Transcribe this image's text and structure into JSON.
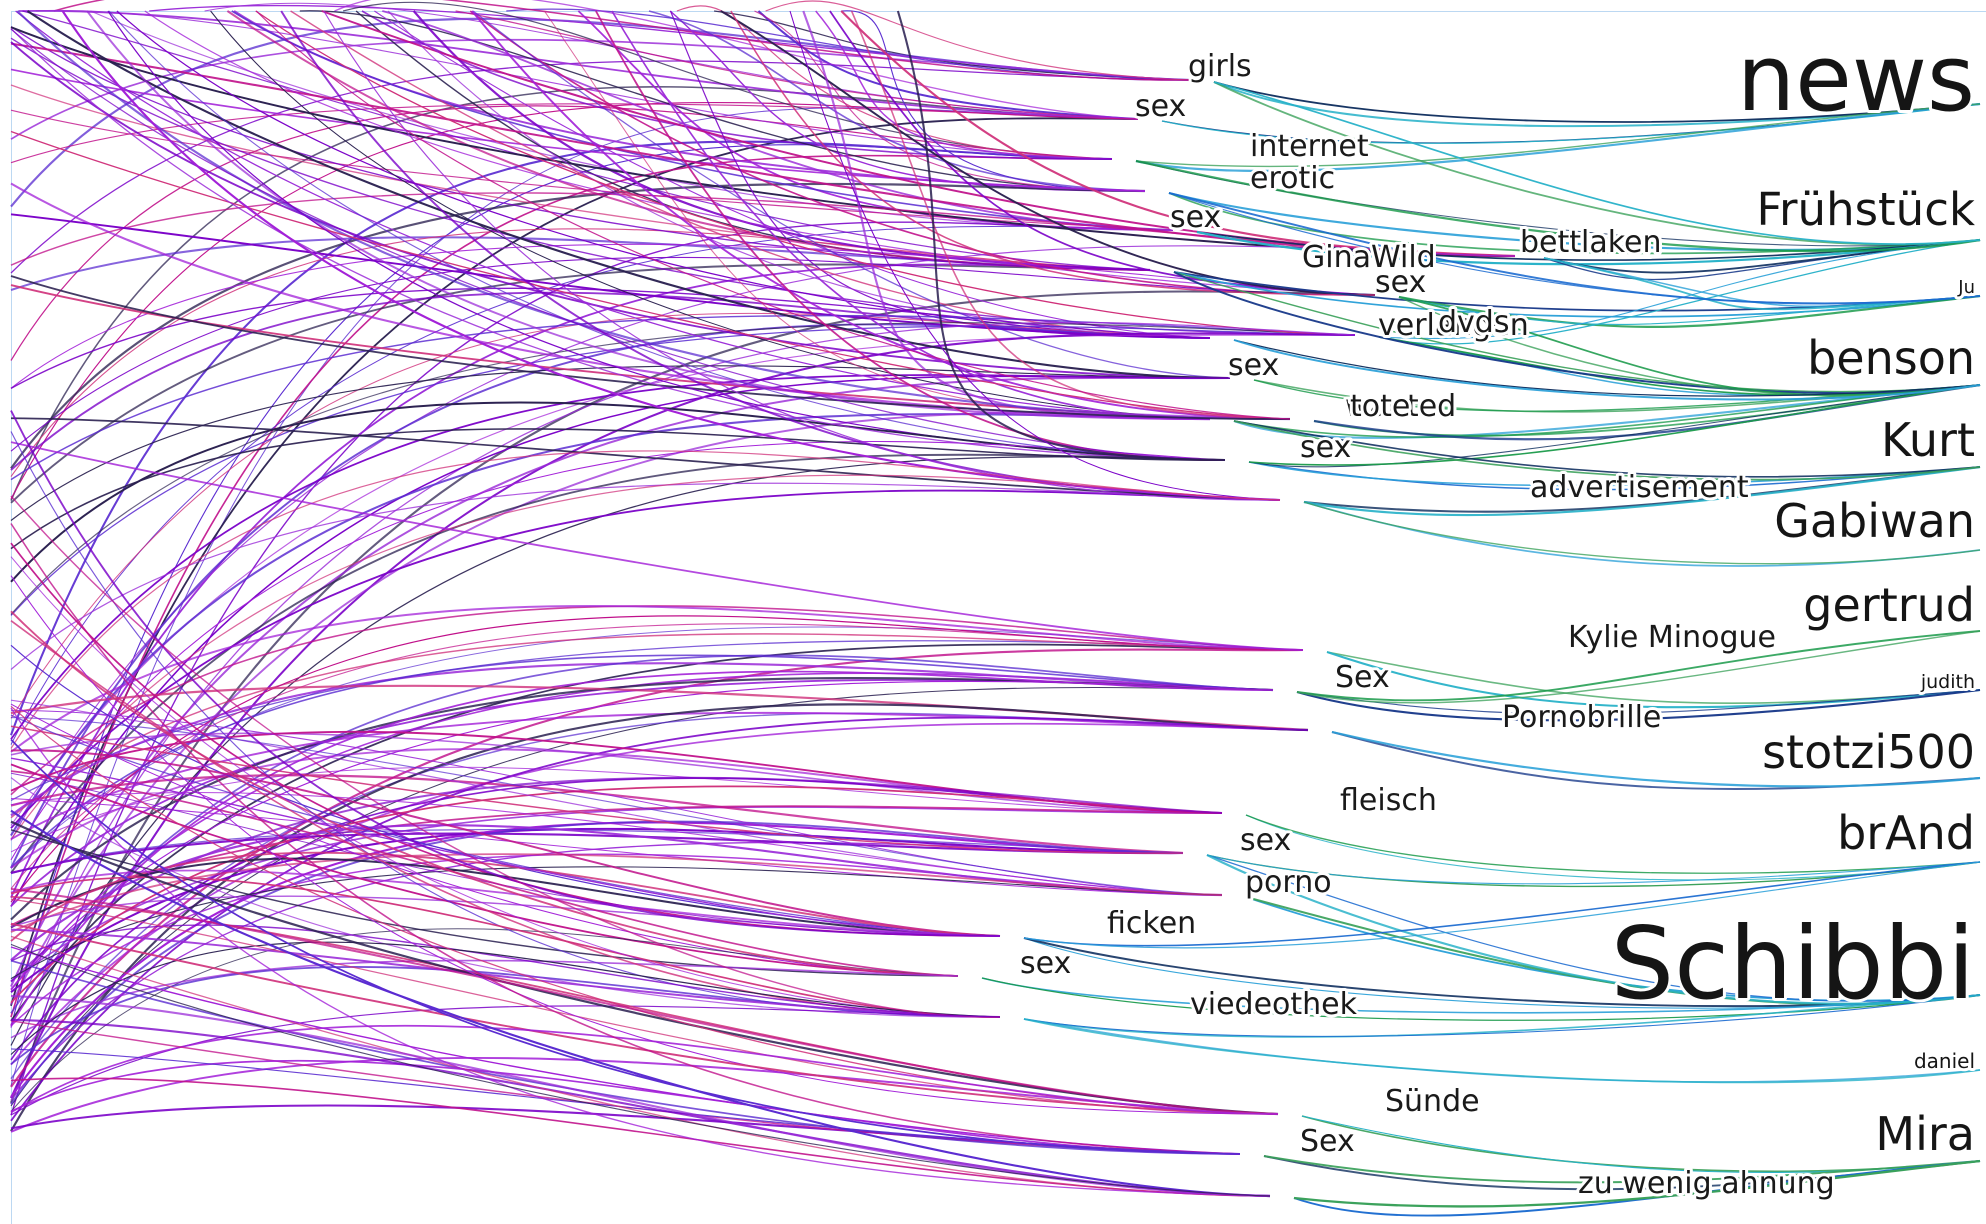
{
  "terms": [
    "girls",
    "sex",
    "internet",
    "erotic",
    "sex",
    "GinaWild",
    "bettlaken",
    "sex",
    "verlangen",
    "dvds",
    "sex",
    "wanted",
    "tote",
    "sex",
    "advertisement",
    "Kylie Minogue",
    "Sex",
    "Pornobrille",
    "fleisch",
    "sex",
    "porno",
    "ficken",
    "sex",
    "viedeothek",
    "Sünde",
    "Sex",
    "zu wenig ahnung"
  ],
  "users": [
    "news",
    "Frühstück",
    "Ju",
    "benson",
    "Kurt",
    "Gabiwan",
    "gertrud",
    "judith",
    "stotzi500",
    "brAnd",
    "Schibbi",
    "daniel",
    "Mira"
  ],
  "colors": {
    "background": "#ffffff",
    "frame": "#bcd8f2",
    "left_palette": [
      "#7a00c8",
      "#a21fd8",
      "#c0108a",
      "#5a2bd0",
      "#2a2050",
      "#d0307a",
      "#9a2ad8"
    ],
    "right_palette": [
      "#1a9a4a",
      "#2aa0d8",
      "#1a3a8a",
      "#27b1c8",
      "#0f2e5e",
      "#3aa15a",
      "#1b6bd0"
    ]
  }
}
